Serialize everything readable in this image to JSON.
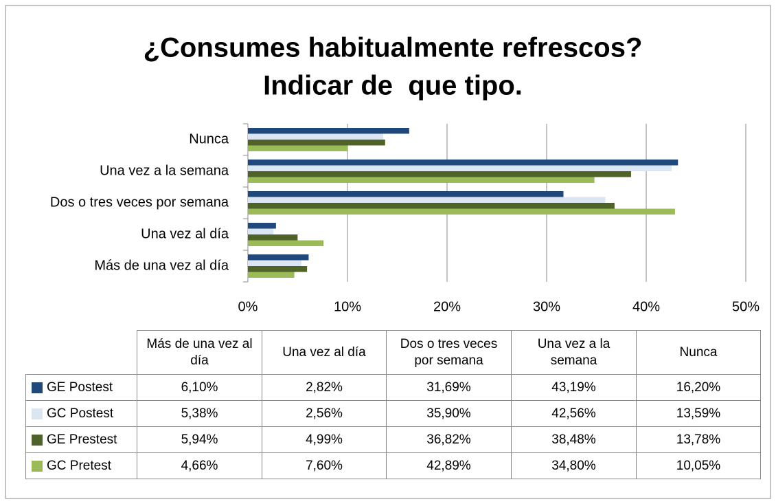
{
  "chart_data": {
    "type": "bar",
    "orientation": "horizontal",
    "title": [
      "¿Consumes habitualmente refrescos?",
      "Indicar de  que tipo."
    ],
    "categories": [
      "Más de una vez al día",
      "Una vez al día",
      "Dos o tres veces por semana",
      "Una vez a la semana",
      "Nunca"
    ],
    "series": [
      {
        "name": "GE Postest",
        "color": "#1f497d",
        "values": [
          6.1,
          2.82,
          31.69,
          43.19,
          16.2
        ],
        "value_labels": [
          "6,10%",
          "2,82%",
          "31,69%",
          "43,19%",
          "16,20%"
        ]
      },
      {
        "name": "GC Postest",
        "color": "#dce6f2",
        "values": [
          5.38,
          2.56,
          35.9,
          42.56,
          13.59
        ],
        "value_labels": [
          "5,38%",
          "2,56%",
          "35,90%",
          "42,56%",
          "13,59%"
        ]
      },
      {
        "name": "GE Prestest",
        "color": "#4f6228",
        "values": [
          5.94,
          4.99,
          36.82,
          38.48,
          13.78
        ],
        "value_labels": [
          "5,94%",
          "4,99%",
          "36,82%",
          "38,48%",
          "13,78%"
        ]
      },
      {
        "name": "GC Pretest",
        "color": "#9bbb59",
        "values": [
          4.66,
          7.6,
          42.89,
          34.8,
          10.05
        ],
        "value_labels": [
          "4,66%",
          "7,60%",
          "42,89%",
          "34,80%",
          "10,05%"
        ]
      }
    ],
    "xlim": [
      0,
      50
    ],
    "xticks": [
      {
        "value": 0,
        "label": "0%"
      },
      {
        "value": 10,
        "label": "10%"
      },
      {
        "value": 20,
        "label": "20%"
      },
      {
        "value": 30,
        "label": "30%"
      },
      {
        "value": 40,
        "label": "40%"
      },
      {
        "value": 50,
        "label": "50%"
      }
    ],
    "grid": true
  }
}
